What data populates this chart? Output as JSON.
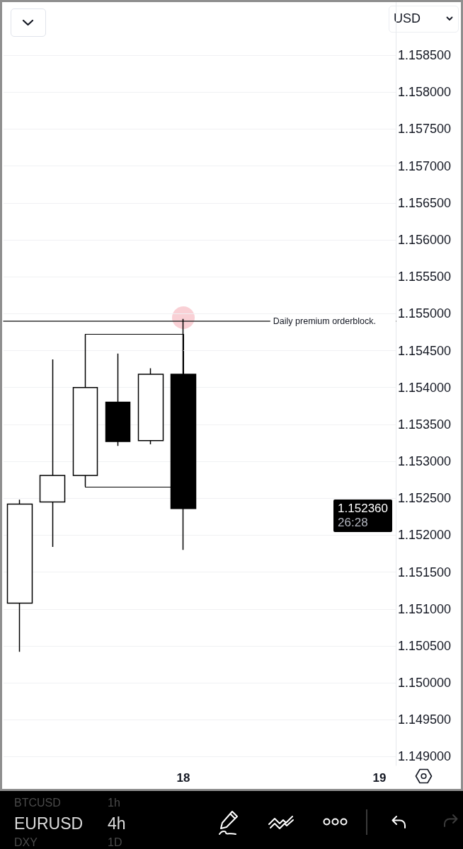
{
  "chart_data": {
    "type": "candlestick",
    "ylabel": "USD",
    "categories": [
      null,
      null,
      null,
      null,
      null,
      "18",
      null,
      null,
      null,
      null,
      null,
      "19"
    ],
    "ohlc": [
      [
        1.15108,
        1.15248,
        1.15042,
        1.15242
      ],
      [
        1.15245,
        1.15438,
        1.15184,
        1.15281
      ],
      [
        1.15281,
        1.15472,
        1.15266,
        1.154
      ],
      [
        1.1538,
        1.15446,
        1.15321,
        1.15327
      ],
      [
        1.15328,
        1.15426,
        1.15323,
        1.15418
      ],
      [
        1.15418,
        1.15493,
        1.1518,
        1.15236
      ],
      null,
      null,
      null,
      null,
      null,
      null
    ],
    "color": "#000000",
    "colors": [
      "#ffffff",
      "#ffffff",
      "#ffffff",
      "#000000",
      "#ffffff",
      "#000000",
      null,
      null,
      null,
      null,
      null,
      null
    ],
    "ylim": [
      1.14888,
      1.15922
    ],
    "yticks": [
      {
        "value": 1.149,
        "label": "1.149000"
      },
      {
        "value": 1.1495,
        "label": "1.149500"
      },
      {
        "value": 1.15,
        "label": "1.150000"
      },
      {
        "value": 1.1505,
        "label": "1.150500"
      },
      {
        "value": 1.151,
        "label": "1.151000"
      },
      {
        "value": 1.1515,
        "label": "1.151500"
      },
      {
        "value": 1.152,
        "label": "1.152000"
      },
      {
        "value": 1.1525,
        "label": "1.152500"
      },
      {
        "value": 1.153,
        "label": "1.153000"
      },
      {
        "value": 1.1535,
        "label": "1.153500"
      },
      {
        "value": 1.154,
        "label": "1.154000"
      },
      {
        "value": 1.1545,
        "label": "1.154500"
      },
      {
        "value": 1.155,
        "label": "1.155000"
      },
      {
        "value": 1.1555,
        "label": "1.155500"
      },
      {
        "value": 1.156,
        "label": "1.156000"
      },
      {
        "value": 1.1565,
        "label": "1.156500"
      },
      {
        "value": 1.157,
        "label": "1.157000"
      },
      {
        "value": 1.1575,
        "label": "1.157500"
      },
      {
        "value": 1.158,
        "label": "1.158000"
      },
      {
        "value": 1.1585,
        "label": "1.158500"
      }
    ],
    "grid": "y",
    "ref_lines": [
      {
        "axis": "y",
        "value": 1.1549,
        "label": "Daily premium orderblock.",
        "color": "#333333"
      }
    ],
    "annotations": [
      "1.152360",
      "26:28",
      "BTCUSD",
      "1h",
      "EURUSD",
      "4h",
      "DXY",
      "1D"
    ]
  }
}
